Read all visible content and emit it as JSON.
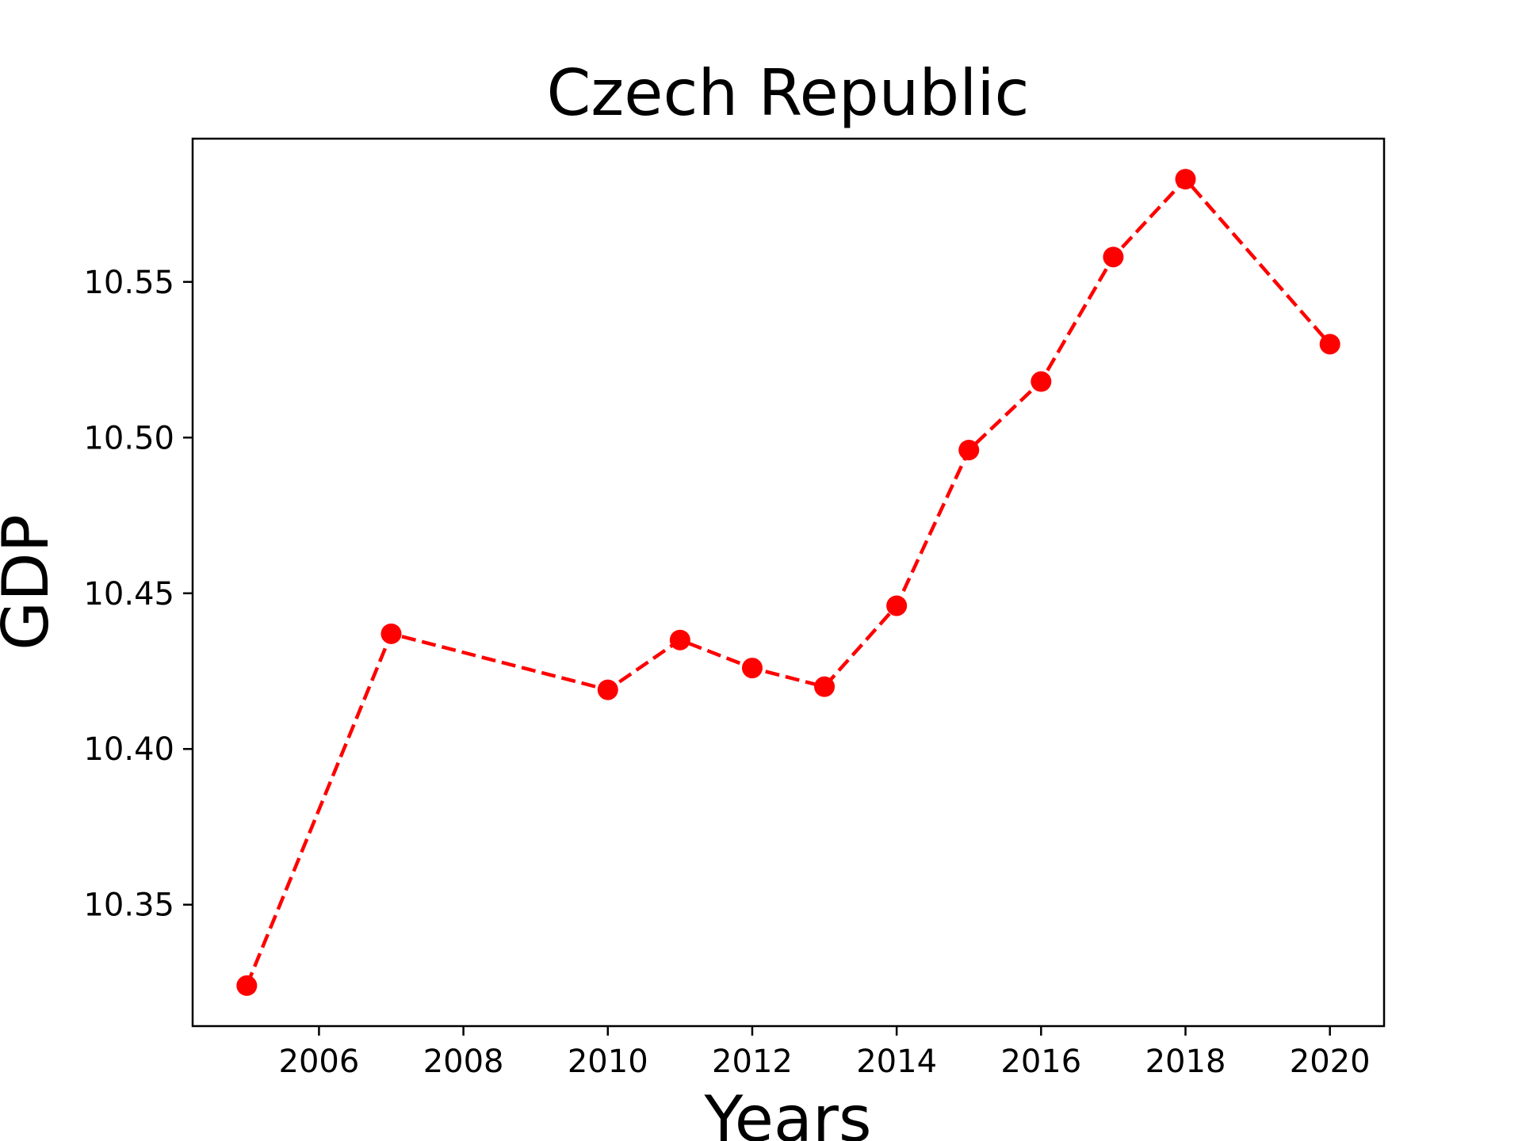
{
  "chart_data": {
    "type": "line",
    "title": "Czech Republic",
    "xlabel": "Years",
    "ylabel": "GDP",
    "x": [
      2005,
      2007,
      2010,
      2011,
      2012,
      2013,
      2014,
      2015,
      2016,
      2017,
      2018,
      2020
    ],
    "series": [
      {
        "values": [
          10.324,
          10.437,
          10.419,
          10.435,
          10.426,
          10.42,
          10.446,
          10.496,
          10.518,
          10.558,
          10.583,
          10.53
        ],
        "color": "#ff0000",
        "line_style": "dashed",
        "marker": "circle"
      }
    ],
    "xlim": [
      2004.25,
      2020.75
    ],
    "ylim": [
      10.311,
      10.596
    ],
    "xticks": [
      2006,
      2008,
      2010,
      2012,
      2014,
      2016,
      2018,
      2020
    ],
    "xtick_labels": [
      "2006",
      "2008",
      "2010",
      "2012",
      "2014",
      "2016",
      "2018",
      "2020"
    ],
    "yticks": [
      10.35,
      10.4,
      10.45,
      10.5,
      10.55
    ],
    "ytick_labels": [
      "10.35",
      "10.40",
      "10.45",
      "10.50",
      "10.55"
    ],
    "grid": false,
    "legend": "none"
  }
}
